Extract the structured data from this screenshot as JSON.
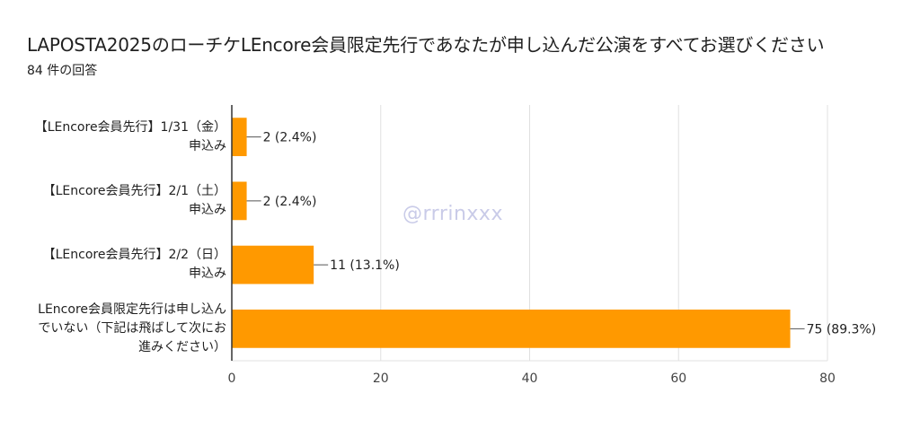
{
  "title": "LAPOSTA2025のローチケLEncore会員限定先行であなたが申し込んだ公演をすべてお選びください",
  "subtitle": "84 件の回答",
  "watermark": "@rrrinxxx",
  "colors": {
    "bar": "#FF9900",
    "grid": "#e0e0e0",
    "axis": "#333333"
  },
  "chart_data": {
    "type": "bar",
    "orientation": "horizontal",
    "title": "LAPOSTA2025のローチケLEncore会員限定先行であなたが申し込んだ公演をすべてお選びください",
    "categories": [
      "【LEncore会員先行】1/31（金）申込み",
      "【LEncore会員先行】2/1（土）申込み",
      "【LEncore会員先行】2/2（日）申込み",
      "LEncore会員限定先行は申し込んでいない（下記は飛ばして次にお進みください）"
    ],
    "category_lines": [
      [
        "【LEncore会員先行】1/31（金）",
        "申込み"
      ],
      [
        "【LEncore会員先行】2/1（土）",
        "申込み"
      ],
      [
        "【LEncore会員先行】2/2（日）",
        "申込み"
      ],
      [
        "LEncore会員限定先行は申し込ん",
        "でいない（下記は飛ばして次にお",
        "進みください）"
      ]
    ],
    "values": [
      2,
      2,
      11,
      75
    ],
    "data_labels": [
      "2 (2.4%)",
      "2 (2.4%)",
      "11 (13.1%)",
      "75 (89.3%)"
    ],
    "xlim": [
      0,
      80
    ],
    "xticks": [
      0,
      20,
      40,
      60,
      80
    ],
    "grid": true
  }
}
